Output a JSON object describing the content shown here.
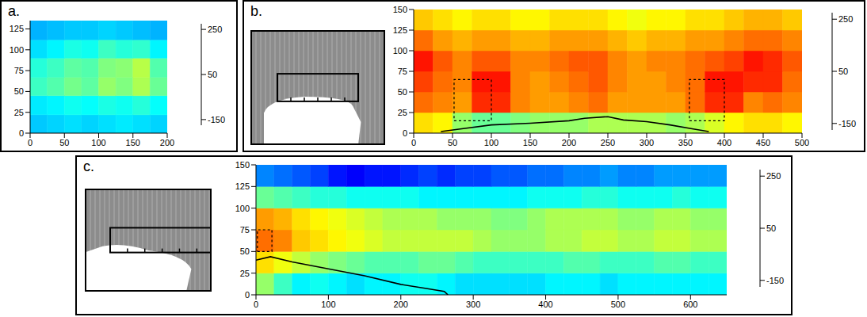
{
  "chart_data": [
    {
      "type": "heatmap",
      "title": "a.",
      "xlim": [
        0,
        200
      ],
      "xticks": [
        0,
        50,
        100,
        150,
        200
      ],
      "ylim": [
        0,
        135
      ],
      "yticks": [
        0,
        25,
        50,
        75,
        100,
        125
      ],
      "cells": {
        "x": [
          0,
          25,
          50,
          75,
          100,
          125,
          150,
          175,
          200
        ],
        "y": [
          0,
          22,
          45,
          67,
          90,
          112,
          135
        ],
        "values": [
          [
            -30,
            -25,
            -20,
            -25,
            -20,
            -15,
            -20,
            -25
          ],
          [
            -15,
            -10,
            0,
            -5,
            5,
            0,
            10,
            -5
          ],
          [
            20,
            30,
            45,
            35,
            60,
            50,
            70,
            40
          ],
          [
            10,
            20,
            35,
            30,
            50,
            55,
            75,
            30
          ],
          [
            -20,
            -10,
            5,
            0,
            20,
            10,
            15,
            -10
          ],
          [
            -40,
            -35,
            -30,
            -30,
            -25,
            -30,
            -35,
            -40
          ]
        ]
      },
      "colorbar": {
        "range": [
          -175,
          275
        ],
        "ticks": [
          -150,
          50,
          250
        ]
      }
    },
    {
      "type": "heatmap",
      "title": "b.",
      "xlim": [
        0,
        500
      ],
      "xticks": [
        0,
        50,
        100,
        150,
        200,
        250,
        300,
        350,
        400,
        450,
        500
      ],
      "ylim": [
        0,
        150
      ],
      "yticks": [
        0,
        25,
        50,
        75,
        100,
        125,
        150
      ],
      "cells": {
        "x": [
          0,
          25,
          50,
          75,
          100,
          125,
          150,
          175,
          200,
          225,
          250,
          275,
          300,
          325,
          350,
          375,
          400,
          425,
          450,
          475,
          500
        ],
        "y": [
          0,
          25,
          50,
          75,
          100,
          125,
          150
        ],
        "values": [
          [
            120,
            110,
            60,
            40,
            40,
            50,
            60,
            60,
            60,
            70,
            70,
            70,
            70,
            60,
            70,
            90,
            110,
            120,
            120,
            110
          ],
          [
            170,
            160,
            150,
            200,
            200,
            160,
            150,
            150,
            160,
            170,
            150,
            150,
            150,
            150,
            170,
            200,
            200,
            160,
            170,
            160
          ],
          [
            190,
            170,
            160,
            210,
            210,
            160,
            150,
            160,
            170,
            180,
            160,
            150,
            150,
            160,
            170,
            210,
            210,
            200,
            200,
            170
          ],
          [
            210,
            180,
            160,
            180,
            180,
            160,
            160,
            170,
            180,
            180,
            160,
            150,
            160,
            160,
            170,
            180,
            190,
            210,
            200,
            180
          ],
          [
            170,
            150,
            140,
            150,
            150,
            140,
            140,
            150,
            150,
            150,
            140,
            130,
            140,
            140,
            150,
            150,
            160,
            170,
            170,
            160
          ],
          [
            130,
            120,
            110,
            120,
            120,
            110,
            110,
            120,
            120,
            120,
            110,
            100,
            110,
            110,
            120,
            120,
            130,
            140,
            140,
            130
          ]
        ]
      },
      "outline": {
        "x": [
          35,
          60,
          100,
          150,
          200,
          220,
          250,
          270,
          300,
          330,
          360,
          380
        ],
        "y": [
          2,
          5,
          10,
          12,
          15,
          18,
          20,
          16,
          14,
          10,
          5,
          2
        ]
      },
      "boxes": [
        {
          "x": [
            52,
            100
          ],
          "y": [
            15,
            65
          ]
        },
        {
          "x": [
            355,
            400
          ],
          "y": [
            15,
            65
          ]
        }
      ],
      "colorbar": {
        "range": [
          -175,
          275
        ],
        "ticks": [
          -150,
          50,
          250
        ]
      }
    },
    {
      "type": "heatmap",
      "title": "c.",
      "xlim": [
        0,
        650
      ],
      "xticks": [
        0,
        100,
        200,
        300,
        400,
        500,
        600
      ],
      "ylim": [
        0,
        150
      ],
      "yticks": [
        0,
        25,
        50,
        75,
        100,
        125,
        150
      ],
      "cells": {
        "x": [
          0,
          25,
          50,
          75,
          100,
          125,
          150,
          175,
          200,
          225,
          250,
          275,
          300,
          325,
          350,
          375,
          400,
          425,
          450,
          475,
          500,
          525,
          550,
          575,
          600,
          625,
          650
        ],
        "y": [
          0,
          25,
          50,
          75,
          100,
          125,
          150
        ],
        "values": [
          [
            60,
            20,
            -10,
            0,
            -10,
            -20,
            -10,
            -10,
            0,
            0,
            -10,
            -20,
            -20,
            -20,
            -20,
            -20,
            -10,
            -10,
            -10,
            -20,
            -10,
            -10,
            -10,
            -10,
            -10,
            -10
          ],
          [
            120,
            100,
            80,
            60,
            50,
            40,
            30,
            30,
            30,
            40,
            40,
            30,
            20,
            20,
            20,
            20,
            20,
            30,
            30,
            20,
            20,
            20,
            30,
            30,
            20,
            20
          ],
          [
            170,
            160,
            130,
            120,
            110,
            100,
            90,
            80,
            80,
            80,
            80,
            80,
            70,
            60,
            60,
            60,
            70,
            70,
            80,
            80,
            70,
            70,
            80,
            80,
            70,
            70
          ],
          [
            150,
            140,
            120,
            110,
            100,
            90,
            80,
            70,
            70,
            70,
            60,
            60,
            60,
            50,
            50,
            60,
            70,
            70,
            70,
            70,
            60,
            60,
            70,
            70,
            60,
            60
          ],
          [
            40,
            30,
            20,
            10,
            10,
            0,
            0,
            0,
            0,
            -10,
            -10,
            -10,
            -10,
            -10,
            -10,
            0,
            0,
            0,
            10,
            10,
            0,
            0,
            0,
            10,
            0,
            0
          ],
          [
            -60,
            -70,
            -80,
            -90,
            -110,
            -120,
            -110,
            -110,
            -100,
            -90,
            -100,
            -90,
            -90,
            -80,
            -80,
            -70,
            -70,
            -60,
            -60,
            -50,
            -60,
            -60,
            -50,
            -50,
            -50,
            -50
          ]
        ]
      },
      "outline": {
        "x": [
          0,
          20,
          50,
          100,
          150,
          200,
          230,
          260,
          265
        ],
        "y": [
          40,
          44,
          38,
          30,
          22,
          12,
          8,
          4,
          0
        ]
      },
      "boxes": [
        {
          "x": [
            2,
            22
          ],
          "y": [
            50,
            75
          ]
        }
      ],
      "colorbar": {
        "range": [
          -175,
          275
        ],
        "ticks": [
          -150,
          50,
          250
        ]
      }
    }
  ]
}
